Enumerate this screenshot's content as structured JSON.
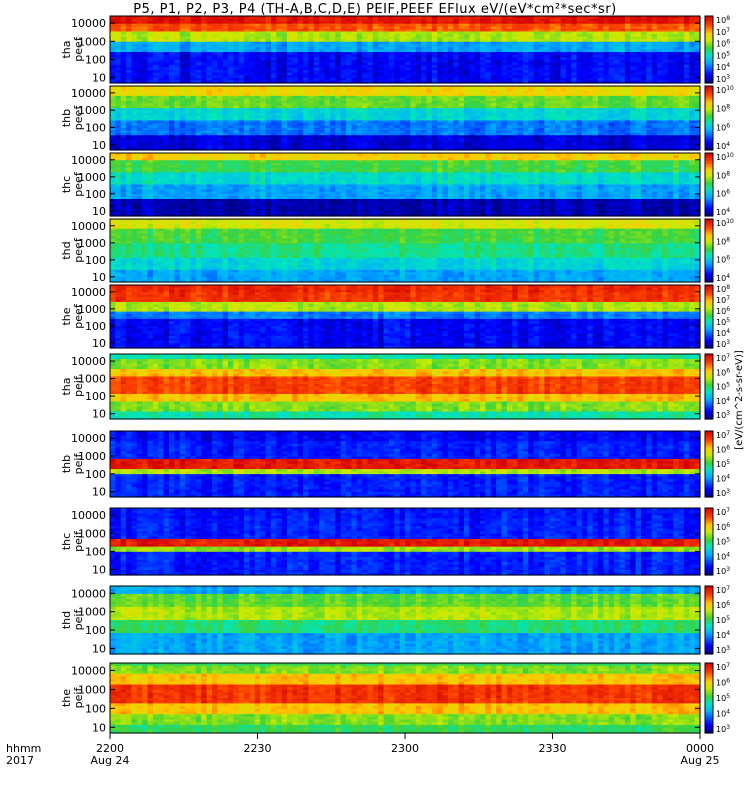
{
  "title": "P5, P1, P2, P3, P4 (TH-A,B,C,D,E) PEIF,PEEF EFlux eV/(eV*cm²*sec*sr)",
  "time_axis": {
    "row1_label": "hhmm",
    "row2_label": "2017",
    "ticks": [
      {
        "hhmm": "2200",
        "date": "Aug 24"
      },
      {
        "hhmm": "2230",
        "date": ""
      },
      {
        "hhmm": "2300",
        "date": ""
      },
      {
        "hhmm": "2330",
        "date": ""
      },
      {
        "hhmm": "0000",
        "date": "Aug 25"
      }
    ]
  },
  "colorbar_units": "[eV/(cm^2-s-sr-eV)]",
  "chart_data": [
    {
      "type": "heatmap",
      "probe": "tha",
      "ylabel": "tha\npeef",
      "species": "electron",
      "yticks": [
        "10000",
        "1000",
        "100",
        "10"
      ],
      "ylim": [
        5,
        25000
      ],
      "yscale": "log",
      "colorbar_ticks": [
        "10^8",
        "10^7",
        "10^6",
        "10^5",
        "10^4",
        "10^3"
      ]
    },
    {
      "type": "heatmap",
      "probe": "thb",
      "ylabel": "thb\npeef",
      "species": "electron",
      "yticks": [
        "10000",
        "1000",
        "100",
        "10"
      ],
      "ylim": [
        5,
        25000
      ],
      "yscale": "log",
      "colorbar_ticks": [
        "10^10",
        "10^8",
        "10^6",
        "10^4"
      ]
    },
    {
      "type": "heatmap",
      "probe": "thc",
      "ylabel": "thc\npeef",
      "species": "electron",
      "yticks": [
        "10000",
        "1000",
        "100",
        "10"
      ],
      "ylim": [
        5,
        25000
      ],
      "yscale": "log",
      "colorbar_ticks": [
        "10^10",
        "10^8",
        "10^6",
        "10^4"
      ]
    },
    {
      "type": "heatmap",
      "probe": "thd",
      "ylabel": "thd\npeef",
      "species": "electron",
      "yticks": [
        "10000",
        "1000",
        "100",
        "10"
      ],
      "ylim": [
        5,
        25000
      ],
      "yscale": "log",
      "colorbar_ticks": [
        "10^10",
        "10^8",
        "10^6",
        "10^4"
      ]
    },
    {
      "type": "heatmap",
      "probe": "the",
      "ylabel": "the\npeef",
      "species": "electron",
      "yticks": [
        "10000",
        "1000",
        "100",
        "10"
      ],
      "ylim": [
        5,
        25000
      ],
      "yscale": "log",
      "colorbar_ticks": [
        "10^8",
        "10^7",
        "10^6",
        "10^5",
        "10^4",
        "10^3"
      ]
    },
    {
      "type": "heatmap",
      "probe": "tha",
      "ylabel": "tha\npeif",
      "species": "ion",
      "yticks": [
        "10000",
        "1000",
        "100",
        "10"
      ],
      "ylim": [
        5,
        25000
      ],
      "yscale": "log",
      "colorbar_ticks": [
        "10^7",
        "10^6",
        "10^5",
        "10^4",
        "10^3"
      ]
    },
    {
      "type": "heatmap",
      "probe": "thb",
      "ylabel": "thb\npeif",
      "species": "ion",
      "yticks": [
        "10000",
        "1000",
        "100",
        "10"
      ],
      "ylim": [
        5,
        25000
      ],
      "yscale": "log",
      "colorbar_ticks": [
        "10^7",
        "10^6",
        "10^5",
        "10^4",
        "10^3"
      ]
    },
    {
      "type": "heatmap",
      "probe": "thc",
      "ylabel": "thc\npeif",
      "species": "ion",
      "yticks": [
        "10000",
        "1000",
        "100",
        "10"
      ],
      "ylim": [
        5,
        25000
      ],
      "yscale": "log",
      "colorbar_ticks": [
        "10^7",
        "10^6",
        "10^5",
        "10^4",
        "10^3"
      ]
    },
    {
      "type": "heatmap",
      "probe": "thd",
      "ylabel": "thd\npeif",
      "species": "ion",
      "yticks": [
        "10000",
        "1000",
        "100",
        "10"
      ],
      "ylim": [
        5,
        25000
      ],
      "yscale": "log",
      "colorbar_ticks": [
        "10^7",
        "10^6",
        "10^5",
        "10^4",
        "10^3"
      ]
    },
    {
      "type": "heatmap",
      "probe": "the",
      "ylabel": "the\npeif",
      "species": "ion",
      "yticks": [
        "10000",
        "1000",
        "100",
        "10"
      ],
      "ylim": [
        5,
        25000
      ],
      "yscale": "log",
      "colorbar_ticks": [
        "10^7",
        "10^6",
        "10^5",
        "10^4",
        "10^3"
      ]
    }
  ]
}
